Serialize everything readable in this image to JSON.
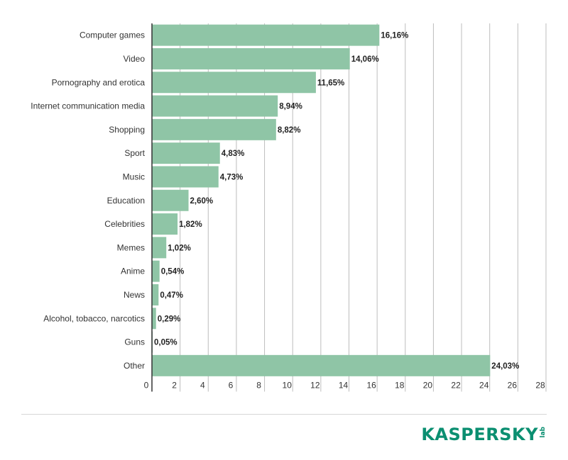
{
  "chart_data": {
    "type": "bar",
    "orientation": "horizontal",
    "title": "",
    "xlabel": "",
    "ylabel": "",
    "categories": [
      "Computer games",
      "Video",
      "Pornography and erotica",
      "Internet communication media",
      "Shopping",
      "Sport",
      "Music",
      "Education",
      "Celebrities",
      "Memes",
      "Anime",
      "News",
      "Alcohol, tobacco, narcotics",
      "Guns",
      "Other"
    ],
    "values": [
      16.16,
      14.06,
      11.65,
      8.94,
      8.82,
      4.83,
      4.73,
      2.6,
      1.82,
      1.02,
      0.54,
      0.47,
      0.29,
      0.05,
      24.03
    ],
    "value_labels": [
      "16,16%",
      "14,06%",
      "11,65%",
      "8,94%",
      "8,82%",
      "4,83%",
      "4,73%",
      "2,60%",
      "1,82%",
      "1,02%",
      "0,54%",
      "0,47%",
      "0,29%",
      "0,05%",
      "24,03%"
    ],
    "xlim": [
      0,
      28
    ],
    "xticks": [
      0,
      2,
      4,
      6,
      8,
      10,
      12,
      14,
      16,
      18,
      20,
      22,
      24,
      26,
      28
    ],
    "xtick_labels": [
      "0",
      "2",
      "4",
      "6",
      "8",
      "10",
      "12",
      "14",
      "16",
      "18",
      "20",
      "22",
      "24",
      "26",
      "28"
    ],
    "grid": true,
    "legend": "none",
    "colors": {
      "bar": "#8fc5a6",
      "grid": "#bdbdbd",
      "axis": "#333333",
      "text": "#333333"
    }
  },
  "brand": {
    "logo_text": "KASPERSKY",
    "logo_sub": "lab",
    "color": "#0b8f71"
  }
}
